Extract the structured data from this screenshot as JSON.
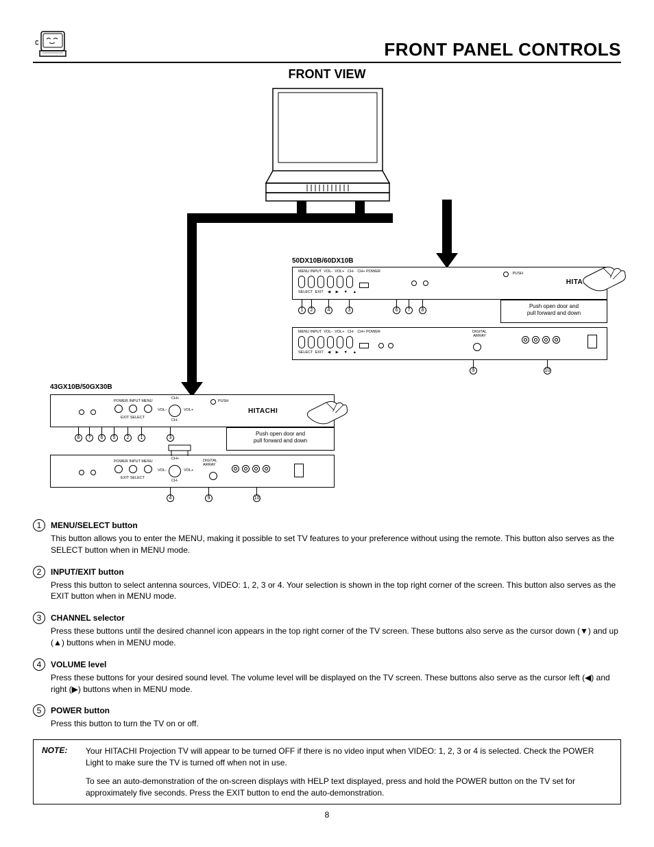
{
  "page_title": "FRONT PANEL CONTROLS",
  "section_title": "FRONT VIEW",
  "model_a": "50DX10B/60DX10B",
  "model_b": "43GX10B/50GX30B",
  "brand": "HITACHI",
  "push_text": "PUSH",
  "door_text_1": "Push open door and",
  "door_text_2": "pull forward and down",
  "digital_array": "DIGITAL\nARRAY",
  "control_labels": {
    "menu": "MENU",
    "input": "INPUT",
    "volminus": "VOL-",
    "volplus": "VOL+",
    "chminus": "CH-",
    "chplus": "CH+",
    "power": "POWER",
    "select": "SELECT",
    "exit": "EXIT"
  },
  "descriptions": [
    {
      "n": "1",
      "title": "MENU/SELECT button",
      "body": "This button allows you to enter the MENU, making it possible to set TV features to your preference without using the remote.  This button also serves as the SELECT button when in MENU mode."
    },
    {
      "n": "2",
      "title": "INPUT/EXIT button",
      "body": "Press this button to select antenna sources, VIDEO: 1, 2, 3 or 4.  Your selection is shown in the top right corner of the screen.  This button also serves as the EXIT button when in MENU mode."
    },
    {
      "n": "3",
      "title": "CHANNEL selector",
      "body": "Press these buttons until the desired channel icon appears in the top right corner of the TV screen.  These buttons also serve as the cursor down (▼) and up (▲) buttons when in MENU mode."
    },
    {
      "n": "4",
      "title": "VOLUME level",
      "body": "Press these buttons for your desired sound level.  The volume level will be displayed on the TV screen.  These buttons also serve as the cursor left (◀) and right (▶) buttons when in MENU mode."
    },
    {
      "n": "5",
      "title": "POWER button",
      "body": "Press this button to turn the TV on or off."
    }
  ],
  "note_label": "NOTE:",
  "note_p1": "Your HITACHI Projection TV will appear to be turned OFF if there is no video input when VIDEO: 1, 2, 3 or 4 is selected.  Check the POWER Light to make sure the TV is turned off when not in use.",
  "note_p2": "To see an auto-demonstration of the on-screen displays with HELP text displayed, press and hold the POWER button on the TV set for approximately five seconds.  Press the EXIT button to end the auto-demonstration.",
  "page_number": "8",
  "colors": {
    "text": "#000000",
    "bg": "#ffffff"
  }
}
